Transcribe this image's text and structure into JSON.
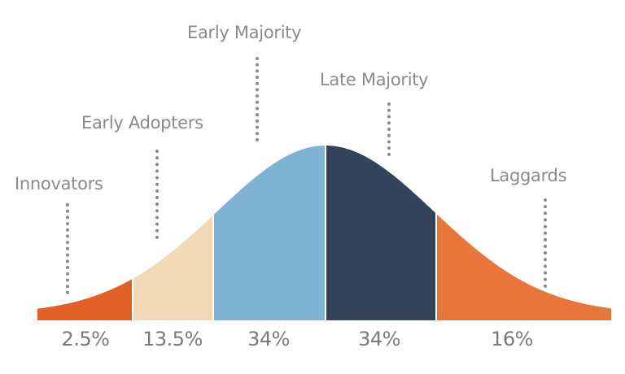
{
  "chart_data": {
    "type": "area",
    "title": "",
    "segments": [
      {
        "label": "Innovators",
        "value": "2.5%",
        "color": "#e06027"
      },
      {
        "label": "Early Adopters",
        "value": "13.5%",
        "color": "#f2d9b5"
      },
      {
        "label": "Early Majority",
        "value": "34%",
        "color": "#7eb3d4"
      },
      {
        "label": "Late Majority",
        "value": "34%",
        "color": "#33435a"
      },
      {
        "label": "Laggards",
        "value": "16%",
        "color": "#e8763a"
      }
    ]
  }
}
